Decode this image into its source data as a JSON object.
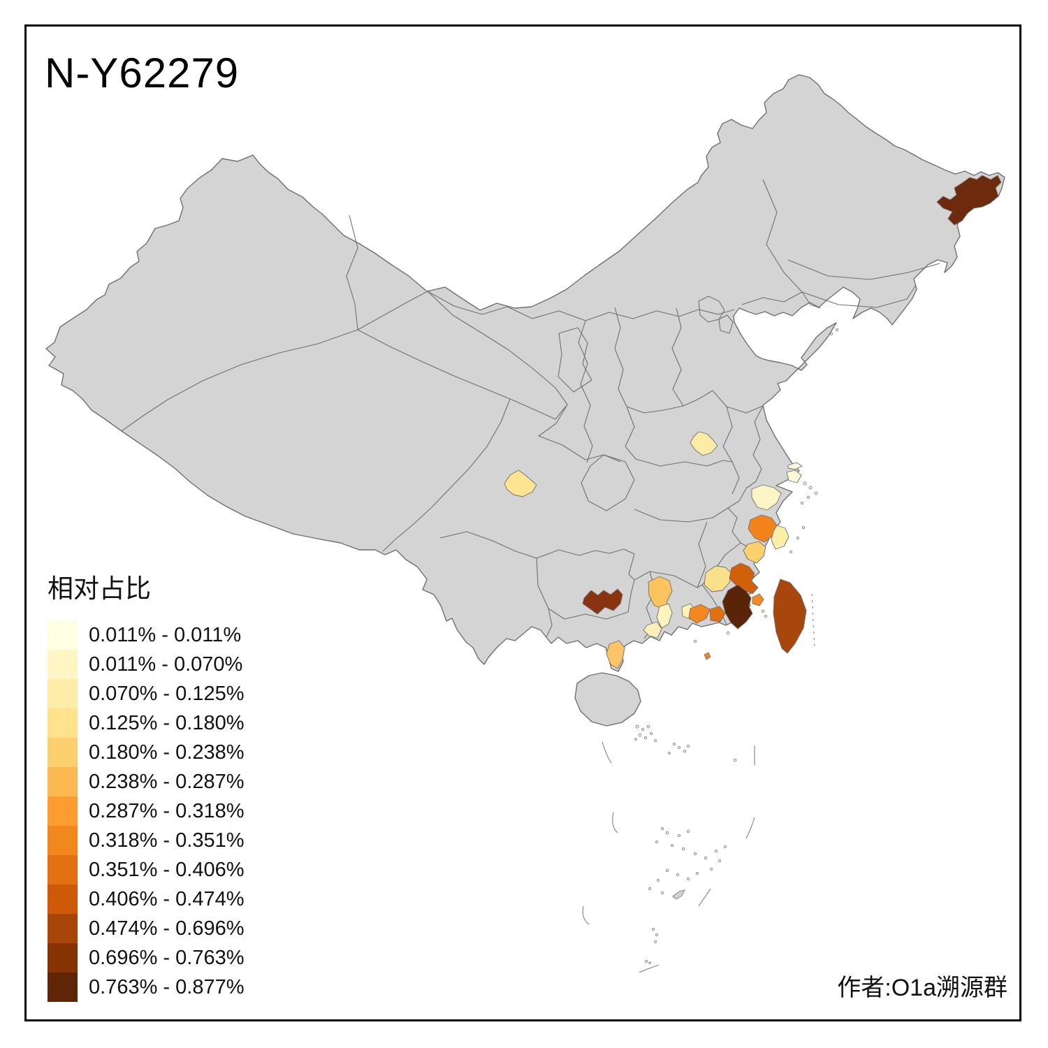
{
  "title": "N-Y62279",
  "attribution": "作者:O1a溯源群",
  "legend": {
    "title": "相对占比",
    "items": [
      {
        "label": "0.011% - 0.011%",
        "color": "#FFFFE3"
      },
      {
        "label": "0.011% - 0.070%",
        "color": "#FFF6C4"
      },
      {
        "label": "0.070% - 0.125%",
        "color": "#FEEDA9"
      },
      {
        "label": "0.125% - 0.180%",
        "color": "#FEE28C"
      },
      {
        "label": "0.180% - 0.238%",
        "color": "#FDD06F"
      },
      {
        "label": "0.238% - 0.287%",
        "color": "#FDB951"
      },
      {
        "label": "0.287% - 0.318%",
        "color": "#FD9C30"
      },
      {
        "label": "0.318% - 0.351%",
        "color": "#F2871D"
      },
      {
        "label": "0.351% - 0.406%",
        "color": "#E17112"
      },
      {
        "label": "0.406% - 0.474%",
        "color": "#CE5A08"
      },
      {
        "label": "0.474% - 0.696%",
        "color": "#A84509"
      },
      {
        "label": "0.696% - 0.763%",
        "color": "#873203"
      },
      {
        "label": "0.763% - 0.877%",
        "color": "#5E2506"
      }
    ]
  },
  "map": {
    "land_color": "#d4d4d4",
    "border_color": "#6f6f6f",
    "regions": [
      {
        "id": "region-northeast-heilongjiang",
        "color": "#6E2A0C"
      },
      {
        "id": "region-chengdu-sichuan",
        "color": "#FCE493"
      },
      {
        "id": "region-southeast-henan",
        "color": "#FDECA6"
      },
      {
        "id": "region-chongming-shanghai",
        "color": "#FEFAD9"
      },
      {
        "id": "region-shanghai",
        "color": "#FEFAD9"
      },
      {
        "id": "region-north-zhejiang",
        "color": "#FDF5C6"
      },
      {
        "id": "region-central-zhejiang",
        "color": "#F5831B"
      },
      {
        "id": "region-east-zhejiang",
        "color": "#FEEFA8"
      },
      {
        "id": "region-south-zhejiang",
        "color": "#FDD06E"
      },
      {
        "id": "region-west-fujian",
        "color": "#FBE08B"
      },
      {
        "id": "region-quanzhou-fujian",
        "color": "#D2600B"
      },
      {
        "id": "region-xiamen-fujian",
        "color": "#F58A20"
      },
      {
        "id": "region-zhangzhou-fujian",
        "color": "#5A2408"
      },
      {
        "id": "region-taiwan",
        "color": "#A8470B"
      },
      {
        "id": "region-east-guangdong-pale",
        "color": "#FDF2B8"
      },
      {
        "id": "region-chaozhou-guangdong",
        "color": "#F5871F"
      },
      {
        "id": "region-shantou-guangdong",
        "color": "#E2700F"
      },
      {
        "id": "region-nanao-island",
        "color": "#F5871F"
      },
      {
        "id": "region-qingyuan-guangdong",
        "color": "#FDC35F"
      },
      {
        "id": "region-guangzhou-guangdong",
        "color": "#FDF3C0"
      },
      {
        "id": "region-foshan-guangdong",
        "color": "#FCF0B8"
      },
      {
        "id": "region-zhanjiang-guangdong",
        "color": "#FBC469"
      },
      {
        "id": "region-central-guizhou",
        "color": "#8A3310"
      }
    ]
  }
}
